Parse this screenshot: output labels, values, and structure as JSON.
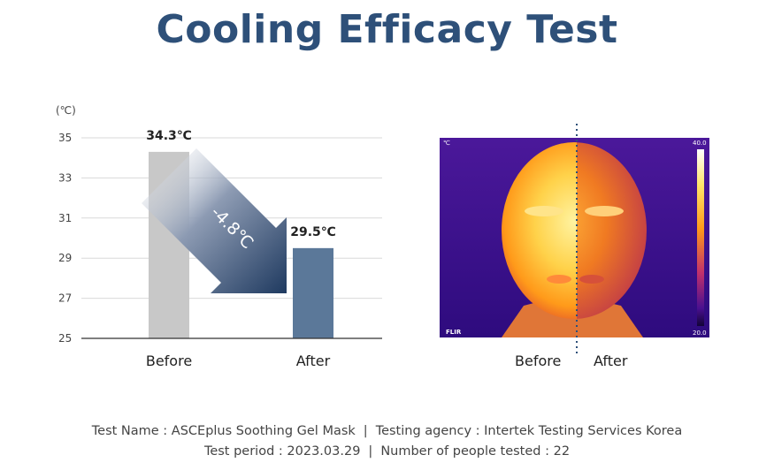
{
  "title": "Cooling Efficacy Test",
  "chart_data": {
    "type": "bar",
    "unit_label": "(℃)",
    "categories": [
      "Before",
      "After"
    ],
    "values": [
      34.3,
      29.5
    ],
    "value_labels": [
      "34.3℃",
      "29.5℃"
    ],
    "colors": [
      "#c8c8c8",
      "#5b7899"
    ],
    "yticks": [
      "35",
      "33",
      "31",
      "29",
      "27",
      "25"
    ],
    "ylim": [
      25,
      35
    ],
    "grid": true,
    "annotation": "-4.8℃"
  },
  "thermal_image": {
    "unit_label": "℃",
    "scale_max": "40.0",
    "scale_min": "20.0",
    "brand": "FLIR",
    "labels": [
      "Before",
      "After"
    ]
  },
  "footer": {
    "test_name": "Test Name : ASCEplus Soothing Gel Mask",
    "agency": "Testing agency : Intertek Testing Services Korea",
    "period": "Test period : 2023.03.29",
    "people": "Number of people tested : 22",
    "separator": "|"
  }
}
